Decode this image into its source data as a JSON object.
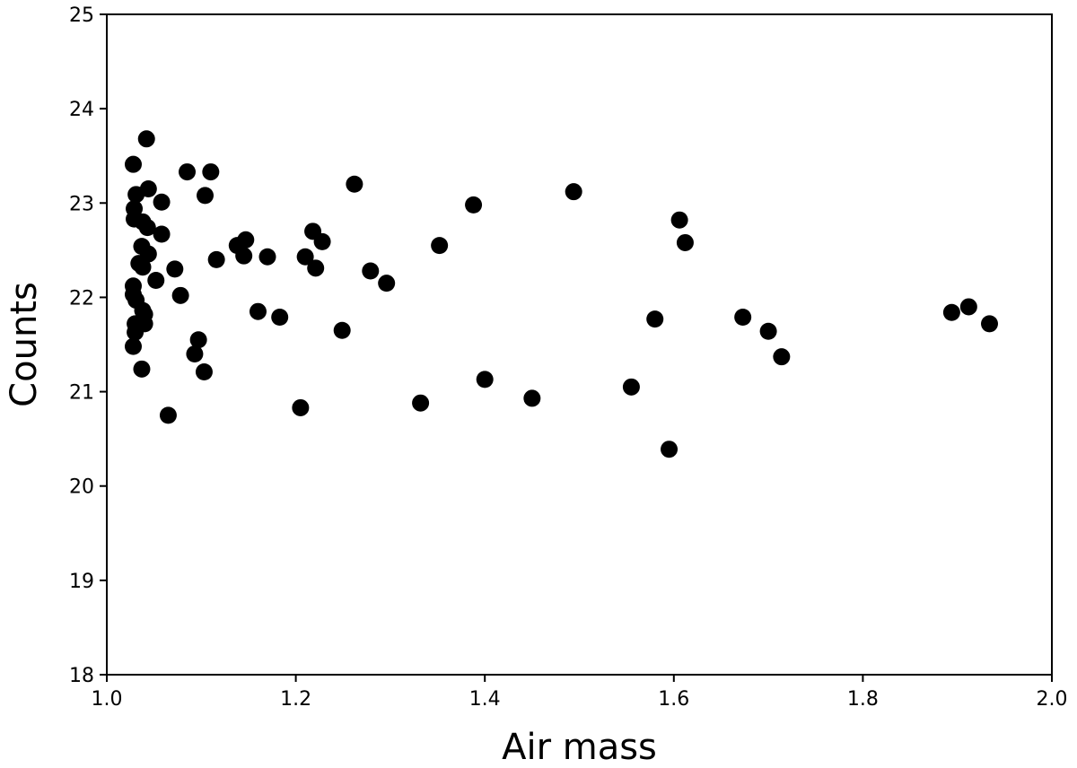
{
  "chart_data": {
    "type": "scatter",
    "title": "",
    "xlabel": "Air mass",
    "ylabel": "Counts",
    "xlim": [
      1.0,
      2.0
    ],
    "ylim": [
      18,
      25
    ],
    "xticks": [
      "1.0",
      "1.2",
      "1.4",
      "1.6",
      "1.8",
      "2.0"
    ],
    "yticks": [
      "18",
      "19",
      "20",
      "21",
      "22",
      "23",
      "24",
      "25"
    ],
    "grid": false,
    "legend": "none",
    "marker_color": "#000000",
    "series": [
      {
        "points": [
          [
            1.028,
            23.41
          ],
          [
            1.042,
            23.68
          ],
          [
            1.031,
            23.09
          ],
          [
            1.044,
            23.15
          ],
          [
            1.029,
            22.94
          ],
          [
            1.029,
            22.83
          ],
          [
            1.038,
            22.8
          ],
          [
            1.043,
            22.74
          ],
          [
            1.058,
            23.01
          ],
          [
            1.058,
            22.67
          ],
          [
            1.037,
            22.54
          ],
          [
            1.044,
            22.46
          ],
          [
            1.034,
            22.36
          ],
          [
            1.038,
            22.32
          ],
          [
            1.052,
            22.18
          ],
          [
            1.028,
            22.12
          ],
          [
            1.028,
            22.03
          ],
          [
            1.031,
            21.97
          ],
          [
            1.038,
            21.86
          ],
          [
            1.04,
            21.82
          ],
          [
            1.03,
            21.72
          ],
          [
            1.04,
            21.72
          ],
          [
            1.03,
            21.63
          ],
          [
            1.028,
            21.48
          ],
          [
            1.037,
            21.24
          ],
          [
            1.065,
            20.75
          ],
          [
            1.072,
            22.3
          ],
          [
            1.078,
            22.02
          ],
          [
            1.085,
            23.33
          ],
          [
            1.104,
            23.08
          ],
          [
            1.11,
            23.33
          ],
          [
            1.116,
            22.4
          ],
          [
            1.097,
            21.55
          ],
          [
            1.093,
            21.4
          ],
          [
            1.103,
            21.21
          ],
          [
            1.138,
            22.55
          ],
          [
            1.147,
            22.61
          ],
          [
            1.145,
            22.44
          ],
          [
            1.17,
            22.43
          ],
          [
            1.16,
            21.85
          ],
          [
            1.183,
            21.79
          ],
          [
            1.21,
            22.43
          ],
          [
            1.218,
            22.7
          ],
          [
            1.228,
            22.59
          ],
          [
            1.221,
            22.31
          ],
          [
            1.205,
            20.83
          ],
          [
            1.262,
            23.2
          ],
          [
            1.279,
            22.28
          ],
          [
            1.296,
            22.15
          ],
          [
            1.249,
            21.65
          ],
          [
            1.332,
            20.88
          ],
          [
            1.352,
            22.55
          ],
          [
            1.388,
            22.98
          ],
          [
            1.4,
            21.13
          ],
          [
            1.45,
            20.93
          ],
          [
            1.494,
            23.12
          ],
          [
            1.555,
            21.05
          ],
          [
            1.58,
            21.77
          ],
          [
            1.595,
            20.39
          ],
          [
            1.606,
            22.82
          ],
          [
            1.612,
            22.58
          ],
          [
            1.673,
            21.79
          ],
          [
            1.7,
            21.64
          ],
          [
            1.714,
            21.37
          ],
          [
            1.894,
            21.84
          ],
          [
            1.912,
            21.9
          ],
          [
            1.934,
            21.72
          ]
        ]
      }
    ]
  }
}
